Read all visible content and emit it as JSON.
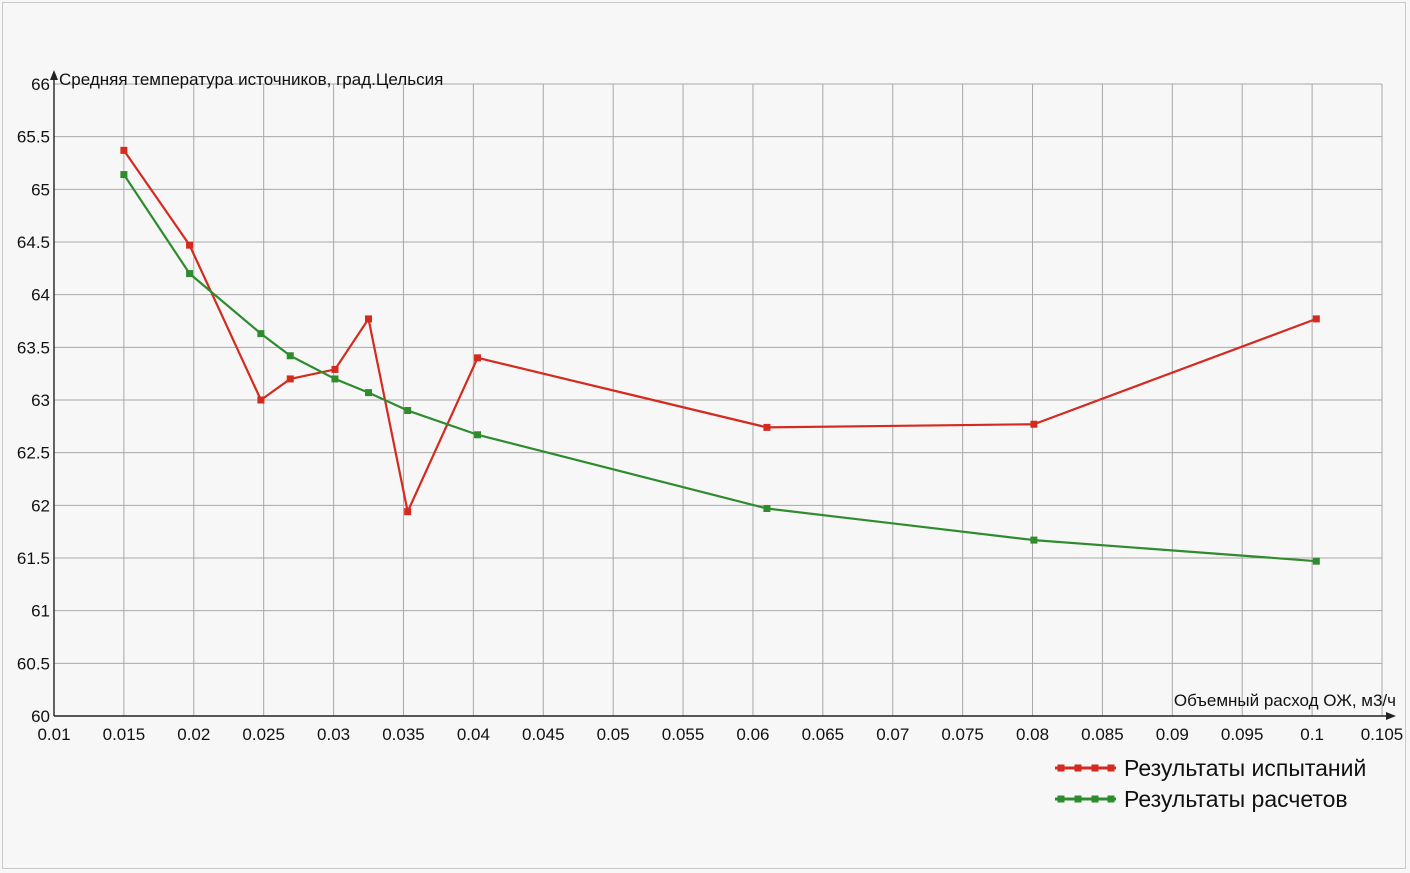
{
  "chart_data": {
    "type": "line",
    "ylabel": "Средняя температура источников, град.Цельсия",
    "xlabel": "Объемный расход ОЖ, м3/ч",
    "xlim": [
      0.01,
      0.105
    ],
    "ylim": [
      60,
      66
    ],
    "x_ticks": [
      "0.01",
      "0.015",
      "0.02",
      "0.025",
      "0.03",
      "0.035",
      "0.04",
      "0.045",
      "0.05",
      "0.055",
      "0.06",
      "0.065",
      "0.07",
      "0.075",
      "0.08",
      "0.085",
      "0.09",
      "0.095",
      "0.1",
      "0.105"
    ],
    "y_ticks": [
      "60",
      "60.5",
      "61",
      "61.5",
      "62",
      "62.5",
      "63",
      "63.5",
      "64",
      "64.5",
      "65",
      "65.5",
      "66"
    ],
    "grid": true,
    "legend_position": "bottom-right",
    "series": [
      {
        "name": "Результаты испытаний",
        "color": "#d42a1f",
        "x": [
          0.015,
          0.0197,
          0.0248,
          0.0269,
          0.0301,
          0.0325,
          0.0353,
          0.0403,
          0.061,
          0.0801,
          0.1003
        ],
        "y": [
          65.37,
          64.47,
          63.0,
          63.2,
          63.29,
          63.77,
          61.94,
          63.4,
          62.74,
          62.77,
          63.77
        ]
      },
      {
        "name": "Результаты расчетов",
        "color": "#2e8b2e",
        "x": [
          0.015,
          0.0197,
          0.0248,
          0.0269,
          0.0301,
          0.0325,
          0.0353,
          0.0403,
          0.061,
          0.0801,
          0.1003
        ],
        "y": [
          65.14,
          64.2,
          63.63,
          63.42,
          63.2,
          63.07,
          62.9,
          62.67,
          61.97,
          61.67,
          61.47
        ]
      }
    ]
  }
}
